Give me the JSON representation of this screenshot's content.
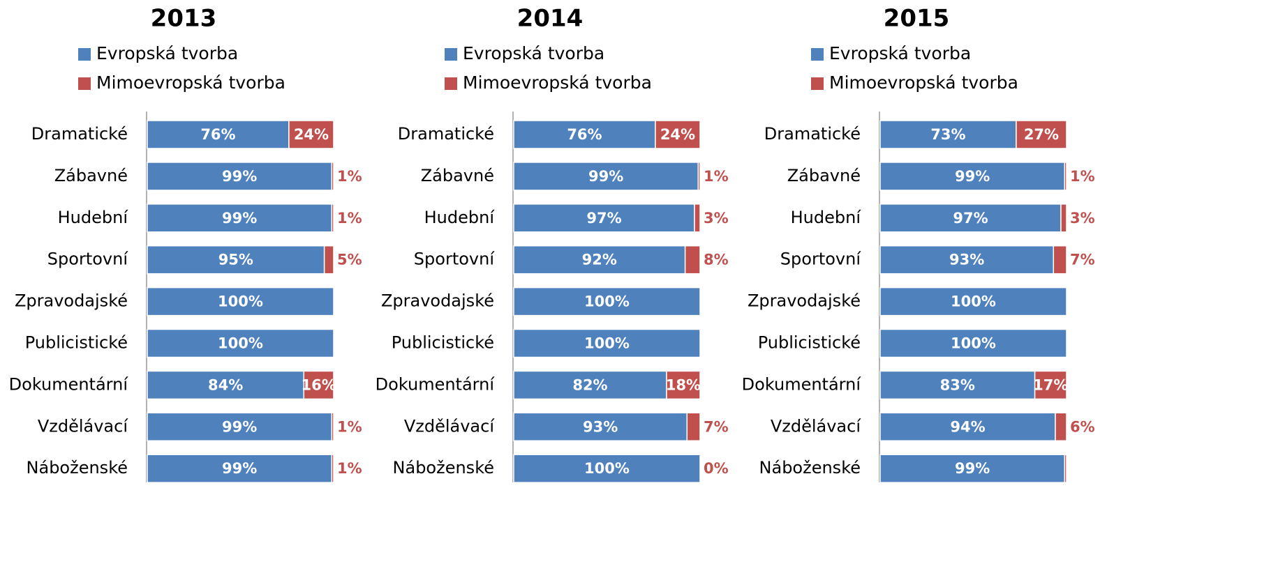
{
  "chart_data": [
    {
      "type": "stacked_barh",
      "title": "2013",
      "categories": [
        "Dramatické",
        "Zábavné",
        "Hudební",
        "Sportovní",
        "Zpravodajské",
        "Publicistické",
        "Dokumentární",
        "Vzdělávací",
        "Náboženské"
      ],
      "xlim": [
        0,
        100
      ],
      "series": [
        {
          "name": "Evropská tvorba",
          "color": "#4f81bd",
          "values": [
            76,
            99,
            99,
            95,
            100,
            100,
            84,
            99,
            99
          ],
          "value_labels": [
            "76%",
            "99%",
            "99%",
            "95%",
            "100%",
            "100%",
            "84%",
            "99%",
            "99%"
          ]
        },
        {
          "name": "Mimoevropská tvorba",
          "color": "#c0504d",
          "values": [
            24,
            1,
            1,
            5,
            0,
            0,
            16,
            1,
            1
          ],
          "value_labels": [
            "24%",
            "1%",
            "1%",
            "5%",
            null,
            null,
            "16%",
            "1%",
            "1%"
          ]
        }
      ]
    },
    {
      "type": "stacked_barh",
      "title": "2014",
      "categories": [
        "Dramatické",
        "Zábavné",
        "Hudební",
        "Sportovní",
        "Zpravodajské",
        "Publicistické",
        "Dokumentární",
        "Vzdělávací",
        "Náboženské"
      ],
      "xlim": [
        0,
        100
      ],
      "series": [
        {
          "name": "Evropská tvorba",
          "color": "#4f81bd",
          "values": [
            76,
            99,
            97,
            92,
            100,
            100,
            82,
            93,
            100
          ],
          "value_labels": [
            "76%",
            "99%",
            "97%",
            "92%",
            "100%",
            "100%",
            "82%",
            "93%",
            "100%"
          ]
        },
        {
          "name": "Mimoevropská tvorba",
          "color": "#c0504d",
          "values": [
            24,
            1,
            3,
            8,
            0,
            0,
            18,
            7,
            0
          ],
          "value_labels": [
            "24%",
            "1%",
            "3%",
            "8%",
            null,
            null,
            "18%",
            "7%",
            "0%"
          ]
        }
      ]
    },
    {
      "type": "stacked_barh",
      "title": "2015",
      "categories": [
        "Dramatické",
        "Zábavné",
        "Hudební",
        "Sportovní",
        "Zpravodajské",
        "Publicistické",
        "Dokumentární",
        "Vzdělávací",
        "Náboženské"
      ],
      "xlim": [
        0,
        100
      ],
      "series": [
        {
          "name": "Evropská tvorba",
          "color": "#4f81bd",
          "values": [
            73,
            99,
            97,
            93,
            100,
            100,
            83,
            94,
            99
          ],
          "value_labels": [
            "73%",
            "99%",
            "97%",
            "93%",
            "100%",
            "100%",
            "83%",
            "94%",
            "99%"
          ]
        },
        {
          "name": "Mimoevropská tvorba",
          "color": "#c0504d",
          "values": [
            27,
            1,
            3,
            7,
            0,
            0,
            17,
            6,
            1
          ],
          "value_labels": [
            "27%",
            "1%",
            "3%",
            "7%",
            null,
            null,
            "17%",
            "6%",
            null
          ]
        }
      ]
    }
  ]
}
